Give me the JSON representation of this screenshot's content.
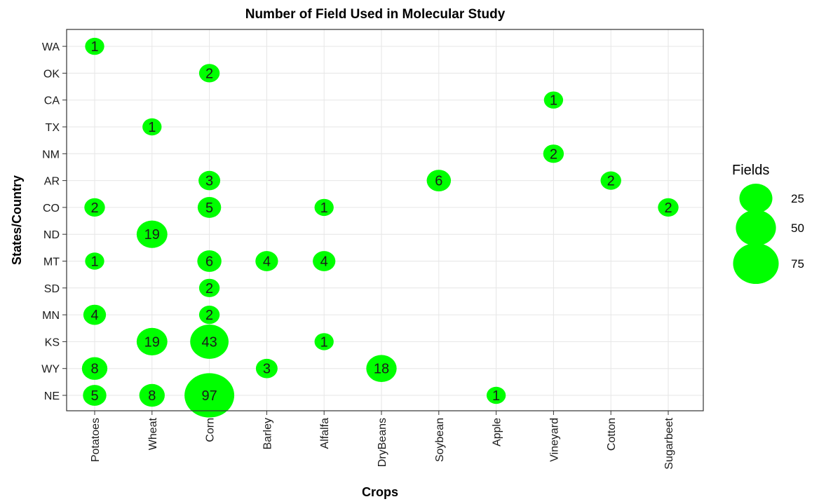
{
  "chart_data": {
    "type": "scatter",
    "title": "Number of Field Used in Molecular Study",
    "xlabel": "Crops",
    "ylabel": "States/Country",
    "x_categories": [
      "Potatoes",
      "Wheat",
      "Corn",
      "Barley",
      "Alfalfa",
      "DryBeans",
      "Soybean",
      "Apple",
      "Vineyard",
      "Cotton",
      "Sugarbeet"
    ],
    "y_categories": [
      "NE",
      "WY",
      "KS",
      "MN",
      "SD",
      "MT",
      "ND",
      "CO",
      "AR",
      "NM",
      "TX",
      "CA",
      "OK",
      "WA"
    ],
    "points": [
      {
        "x": "Potatoes",
        "y": "WA",
        "value": 1
      },
      {
        "x": "Potatoes",
        "y": "CO",
        "value": 2
      },
      {
        "x": "Potatoes",
        "y": "MT",
        "value": 1
      },
      {
        "x": "Potatoes",
        "y": "MN",
        "value": 4
      },
      {
        "x": "Potatoes",
        "y": "WY",
        "value": 8
      },
      {
        "x": "Potatoes",
        "y": "NE",
        "value": 5
      },
      {
        "x": "Wheat",
        "y": "TX",
        "value": 1
      },
      {
        "x": "Wheat",
        "y": "ND",
        "value": 19
      },
      {
        "x": "Wheat",
        "y": "KS",
        "value": 19
      },
      {
        "x": "Wheat",
        "y": "NE",
        "value": 8
      },
      {
        "x": "Corn",
        "y": "OK",
        "value": 2
      },
      {
        "x": "Corn",
        "y": "AR",
        "value": 3
      },
      {
        "x": "Corn",
        "y": "CO",
        "value": 5
      },
      {
        "x": "Corn",
        "y": "MT",
        "value": 6
      },
      {
        "x": "Corn",
        "y": "SD",
        "value": 2
      },
      {
        "x": "Corn",
        "y": "MN",
        "value": 2
      },
      {
        "x": "Corn",
        "y": "KS",
        "value": 43
      },
      {
        "x": "Corn",
        "y": "NE",
        "value": 97
      },
      {
        "x": "Barley",
        "y": "MT",
        "value": 4
      },
      {
        "x": "Barley",
        "y": "WY",
        "value": 3
      },
      {
        "x": "Alfalfa",
        "y": "CO",
        "value": 1
      },
      {
        "x": "Alfalfa",
        "y": "MT",
        "value": 4
      },
      {
        "x": "Alfalfa",
        "y": "KS",
        "value": 1
      },
      {
        "x": "DryBeans",
        "y": "WY",
        "value": 18
      },
      {
        "x": "Soybean",
        "y": "AR",
        "value": 6
      },
      {
        "x": "Apple",
        "y": "NE",
        "value": 1
      },
      {
        "x": "Vineyard",
        "y": "CA",
        "value": 1
      },
      {
        "x": "Vineyard",
        "y": "NM",
        "value": 2
      },
      {
        "x": "Cotton",
        "y": "AR",
        "value": 2
      },
      {
        "x": "Sugarbeet",
        "y": "CO",
        "value": 2
      }
    ],
    "size_legend": {
      "title": "Fields",
      "values": [
        25,
        50,
        75
      ],
      "labels": [
        "25",
        "50",
        "75"
      ]
    },
    "grid": true,
    "legend_position": "right",
    "colors": {
      "bubble": "#00ff00",
      "panel_border": "#333333",
      "grid": "#e6e6e6",
      "background": "#ffffff"
    }
  }
}
